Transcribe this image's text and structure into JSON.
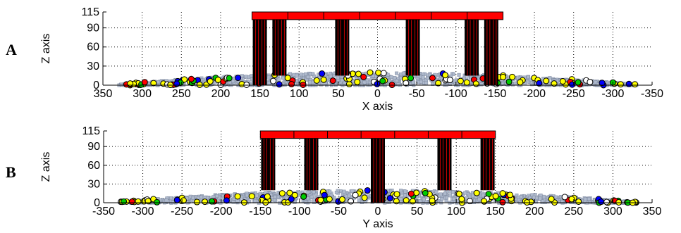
{
  "figure": {
    "panels": [
      "A",
      "B"
    ]
  },
  "chart_data": [
    {
      "type": "scatter",
      "panel_label": "A",
      "xlabel": "X axis",
      "ylabel": "Z axis",
      "xlim": [
        350,
        -350
      ],
      "ylim": [
        0,
        115
      ],
      "xticks": [
        350,
        300,
        250,
        200,
        150,
        100,
        50,
        0,
        -50,
        -100,
        -150,
        -200,
        -250,
        -300,
        -350
      ],
      "yticks": [
        0,
        30,
        60,
        90,
        115
      ],
      "grid": true,
      "pile_range": [
        -330,
        330
      ],
      "deck": {
        "x_range": [
          160,
          -160
        ],
        "z_range": [
          103,
          115
        ],
        "color": "#ff0000"
      },
      "posts": [
        {
          "x": 150,
          "z_bottom": 0,
          "z_top": 103
        },
        {
          "x": 125,
          "z_bottom": 15,
          "z_top": 103
        },
        {
          "x": 45,
          "z_bottom": 15,
          "z_top": 103
        },
        {
          "x": -45,
          "z_bottom": 15,
          "z_top": 103
        },
        {
          "x": -120,
          "z_bottom": 15,
          "z_top": 103
        },
        {
          "x": -145,
          "z_bottom": 0,
          "z_top": 103
        }
      ]
    },
    {
      "type": "scatter",
      "panel_label": "B",
      "xlabel": "Y axis",
      "ylabel": "Z axis",
      "xlim": [
        -350,
        350
      ],
      "ylim": [
        0,
        115
      ],
      "xticks": [
        -350,
        -300,
        -250,
        -200,
        -150,
        -100,
        -50,
        0,
        50,
        100,
        150,
        200,
        250,
        300,
        350
      ],
      "yticks": [
        0,
        30,
        60,
        90,
        115
      ],
      "grid": true,
      "pile_range": [
        -330,
        330
      ],
      "deck": {
        "x_range": [
          -150,
          150
        ],
        "z_range": [
          103,
          115
        ],
        "color": "#ff0000"
      },
      "posts": [
        {
          "x": -140,
          "z_bottom": 20,
          "z_top": 103
        },
        {
          "x": -85,
          "z_bottom": 20,
          "z_top": 103
        },
        {
          "x": 0,
          "z_bottom": 0,
          "z_top": 103
        },
        {
          "x": 85,
          "z_bottom": 20,
          "z_top": 103
        },
        {
          "x": 140,
          "z_bottom": 20,
          "z_top": 103
        }
      ]
    }
  ]
}
